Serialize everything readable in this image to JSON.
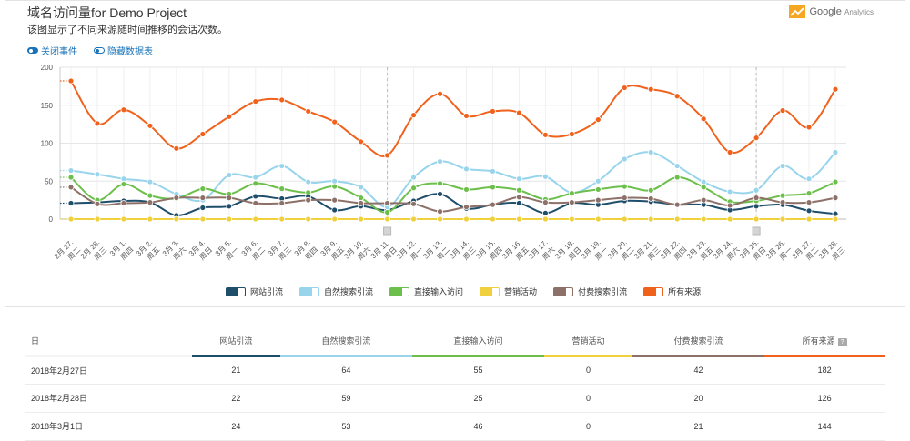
{
  "header": {
    "title": "域名访问量for Demo Project",
    "subtitle": "该图显示了不同来源随时间推移的会话次数。",
    "brand": "Google",
    "brand_sub": "Analytics"
  },
  "toggles": [
    {
      "label": "关闭事件",
      "on": true
    },
    {
      "label": "隐藏数据表",
      "on": false
    }
  ],
  "chart_data": {
    "type": "line",
    "ylim": [
      0,
      200
    ],
    "yticks": [
      0,
      50,
      100,
      150,
      200
    ],
    "x_date": [
      "2月 27.",
      "2月 28.",
      "3月 1.",
      "3月 2.",
      "3月 3.",
      "3月 4.",
      "3月 5.",
      "3月 6.",
      "3月 7.",
      "3月 8.",
      "3月 9.",
      "3月 10.",
      "3月 11.",
      "3月 12.",
      "3月 13.",
      "3月 14.",
      "3月 15.",
      "3月 16.",
      "3月 17.",
      "3月 18.",
      "3月 19.",
      "3月 20.",
      "3月 21.",
      "3月 22.",
      "3月 23.",
      "3月 24.",
      "3月 25.",
      "3月 26.",
      "3月 27.",
      "3月 28."
    ],
    "x_weekday": [
      "周二",
      "周三",
      "周四",
      "周五",
      "周六",
      "周日",
      "周一",
      "周二",
      "周三",
      "周四",
      "周五",
      "周六",
      "周日",
      "周一",
      "周二",
      "周三",
      "周四",
      "周五",
      "周六",
      "周日",
      "周一",
      "周二",
      "周三",
      "周四",
      "周五",
      "周六",
      "周日",
      "周一",
      "周二",
      "周三"
    ],
    "event_markers": [
      12,
      26
    ],
    "series": [
      {
        "name": "网站引流",
        "color": "#1f4e6b",
        "values": [
          21,
          22,
          24,
          22,
          5,
          15,
          17,
          30,
          27,
          30,
          12,
          17,
          12,
          24,
          33,
          14,
          19,
          21,
          8,
          21,
          19,
          24,
          23,
          19,
          19,
          12,
          17,
          19,
          11,
          7
        ]
      },
      {
        "name": "自然搜索引流",
        "color": "#98d4ec",
        "values": [
          64,
          59,
          53,
          49,
          33,
          25,
          58,
          55,
          70,
          49,
          50,
          42,
          16,
          55,
          76,
          66,
          63,
          53,
          56,
          35,
          50,
          79,
          88,
          70,
          49,
          36,
          38,
          70,
          53,
          88
        ]
      },
      {
        "name": "直接输入访问",
        "color": "#6cbf4b",
        "values": [
          55,
          25,
          46,
          31,
          27,
          40,
          33,
          47,
          40,
          35,
          43,
          28,
          9,
          41,
          47,
          39,
          42,
          38,
          26,
          34,
          39,
          43,
          38,
          55,
          42,
          23,
          24,
          31,
          34,
          49
        ]
      },
      {
        "name": "营销活动",
        "color": "#f0d03c",
        "values": [
          0,
          0,
          0,
          0,
          0,
          0,
          0,
          0,
          0,
          0,
          0,
          0,
          0,
          0,
          0,
          0,
          0,
          0,
          0,
          0,
          0,
          0,
          0,
          0,
          0,
          0,
          0,
          0,
          0,
          0
        ]
      },
      {
        "name": "付费搜索引流",
        "color": "#8d7168",
        "values": [
          42,
          20,
          21,
          22,
          28,
          28,
          28,
          21,
          21,
          25,
          25,
          21,
          21,
          20,
          10,
          16,
          19,
          29,
          22,
          22,
          25,
          28,
          27,
          19,
          25,
          18,
          28,
          22,
          22,
          28
        ]
      },
      {
        "name": "所有来源",
        "color": "#f0621c",
        "values": [
          182,
          126,
          144,
          123,
          93,
          112,
          135,
          155,
          157,
          142,
          128,
          102,
          84,
          137,
          165,
          136,
          142,
          140,
          111,
          112,
          131,
          173,
          171,
          162,
          132,
          88,
          107,
          143,
          121,
          171
        ]
      }
    ]
  },
  "table": {
    "headers": [
      "日",
      "网站引流",
      "自然搜索引流",
      "直接输入访问",
      "营销活动",
      "付费搜索引流",
      "所有来源"
    ],
    "header_colors": [
      "#f5f5f5",
      "#1f4e6b",
      "#98d4ec",
      "#6cbf4b",
      "#f0d03c",
      "#8d7168",
      "#f0621c"
    ],
    "rows": [
      [
        "2018年2月27日",
        "21",
        "64",
        "55",
        "0",
        "42",
        "182"
      ],
      [
        "2018年2月28日",
        "22",
        "59",
        "25",
        "0",
        "20",
        "126"
      ],
      [
        "2018年3月1日",
        "24",
        "53",
        "46",
        "0",
        "21",
        "144"
      ]
    ]
  }
}
